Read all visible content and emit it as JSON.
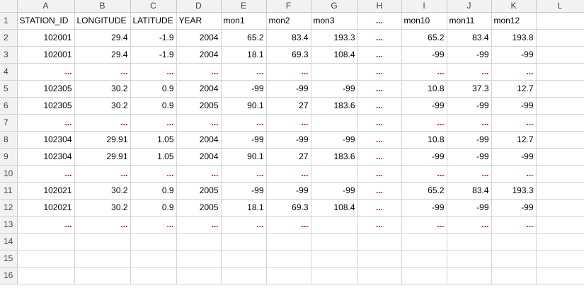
{
  "columns": [
    "A",
    "B",
    "C",
    "D",
    "E",
    "F",
    "G",
    "H",
    "I",
    "J",
    "K",
    "L"
  ],
  "rows": [
    {
      "n": "1",
      "cells": [
        {
          "v": "STATION_ID",
          "t": "txt"
        },
        {
          "v": "LONGITUDE",
          "t": "txt"
        },
        {
          "v": "LATITUDE",
          "t": "txt"
        },
        {
          "v": "YEAR",
          "t": "txt"
        },
        {
          "v": "mon1",
          "t": "txt"
        },
        {
          "v": "mon2",
          "t": "txt"
        },
        {
          "v": "mon3",
          "t": "txt"
        },
        {
          "v": "...",
          "t": "dot"
        },
        {
          "v": "mon10",
          "t": "txt"
        },
        {
          "v": "mon11",
          "t": "txt"
        },
        {
          "v": "mon12",
          "t": "txt"
        },
        {
          "v": "",
          "t": "num"
        }
      ]
    },
    {
      "n": "2",
      "cells": [
        {
          "v": "102001",
          "t": "num"
        },
        {
          "v": "29.4",
          "t": "num"
        },
        {
          "v": "-1.9",
          "t": "num"
        },
        {
          "v": "2004",
          "t": "num"
        },
        {
          "v": "65.2",
          "t": "num"
        },
        {
          "v": "83.4",
          "t": "num"
        },
        {
          "v": "193.3",
          "t": "num"
        },
        {
          "v": "...",
          "t": "dot"
        },
        {
          "v": "65.2",
          "t": "num"
        },
        {
          "v": "83.4",
          "t": "num"
        },
        {
          "v": "193.8",
          "t": "num"
        },
        {
          "v": "",
          "t": "num"
        }
      ]
    },
    {
      "n": "3",
      "cells": [
        {
          "v": "102001",
          "t": "num"
        },
        {
          "v": "29.4",
          "t": "num"
        },
        {
          "v": "-1.9",
          "t": "num"
        },
        {
          "v": "2004",
          "t": "num"
        },
        {
          "v": "18.1",
          "t": "num"
        },
        {
          "v": "69.3",
          "t": "num"
        },
        {
          "v": "108.4",
          "t": "num"
        },
        {
          "v": "...",
          "t": "dot"
        },
        {
          "v": "-99",
          "t": "num"
        },
        {
          "v": "-99",
          "t": "num"
        },
        {
          "v": "-99",
          "t": "num"
        },
        {
          "v": "",
          "t": "num"
        }
      ]
    },
    {
      "n": "4",
      "cells": [
        {
          "v": "...",
          "t": "dot"
        },
        {
          "v": "...",
          "t": "dot"
        },
        {
          "v": "...",
          "t": "dot"
        },
        {
          "v": "...",
          "t": "dot"
        },
        {
          "v": "...",
          "t": "dot"
        },
        {
          "v": "...",
          "t": "dot"
        },
        {
          "v": "",
          "t": "num"
        },
        {
          "v": "...",
          "t": "dot"
        },
        {
          "v": "...",
          "t": "dot"
        },
        {
          "v": "...",
          "t": "dot"
        },
        {
          "v": "...",
          "t": "dot"
        },
        {
          "v": "",
          "t": "num"
        }
      ]
    },
    {
      "n": "5",
      "cells": [
        {
          "v": "102305",
          "t": "num"
        },
        {
          "v": "30.2",
          "t": "num"
        },
        {
          "v": "0.9",
          "t": "num"
        },
        {
          "v": "2004",
          "t": "num"
        },
        {
          "v": "-99",
          "t": "num"
        },
        {
          "v": "-99",
          "t": "num"
        },
        {
          "v": "-99",
          "t": "num"
        },
        {
          "v": "...",
          "t": "dot"
        },
        {
          "v": "10.8",
          "t": "num"
        },
        {
          "v": "37.3",
          "t": "num"
        },
        {
          "v": "12.7",
          "t": "num"
        },
        {
          "v": "",
          "t": "num"
        }
      ]
    },
    {
      "n": "6",
      "cells": [
        {
          "v": "102305",
          "t": "num"
        },
        {
          "v": "30.2",
          "t": "num"
        },
        {
          "v": "0.9",
          "t": "num"
        },
        {
          "v": "2005",
          "t": "num"
        },
        {
          "v": "90.1",
          "t": "num"
        },
        {
          "v": "27",
          "t": "num"
        },
        {
          "v": "183.6",
          "t": "num"
        },
        {
          "v": "...",
          "t": "dot"
        },
        {
          "v": "-99",
          "t": "num"
        },
        {
          "v": "-99",
          "t": "num"
        },
        {
          "v": "-99",
          "t": "num"
        },
        {
          "v": "",
          "t": "num"
        }
      ]
    },
    {
      "n": "7",
      "cells": [
        {
          "v": "...",
          "t": "dot"
        },
        {
          "v": "...",
          "t": "dot"
        },
        {
          "v": "...",
          "t": "dot"
        },
        {
          "v": "...",
          "t": "dot"
        },
        {
          "v": "...",
          "t": "dot"
        },
        {
          "v": "...",
          "t": "dot"
        },
        {
          "v": "",
          "t": "num"
        },
        {
          "v": "...",
          "t": "dot"
        },
        {
          "v": "...",
          "t": "dot"
        },
        {
          "v": "...",
          "t": "dot"
        },
        {
          "v": "...",
          "t": "dot"
        },
        {
          "v": "",
          "t": "num"
        }
      ]
    },
    {
      "n": "8",
      "cells": [
        {
          "v": "102304",
          "t": "num"
        },
        {
          "v": "29.91",
          "t": "num"
        },
        {
          "v": "1.05",
          "t": "num"
        },
        {
          "v": "2004",
          "t": "num"
        },
        {
          "v": "-99",
          "t": "num"
        },
        {
          "v": "-99",
          "t": "num"
        },
        {
          "v": "-99",
          "t": "num"
        },
        {
          "v": "...",
          "t": "dot"
        },
        {
          "v": "10.8",
          "t": "num"
        },
        {
          "v": "-99",
          "t": "num"
        },
        {
          "v": "12.7",
          "t": "num"
        },
        {
          "v": "",
          "t": "num"
        }
      ]
    },
    {
      "n": "9",
      "cells": [
        {
          "v": "102304",
          "t": "num"
        },
        {
          "v": "29.91",
          "t": "num"
        },
        {
          "v": "1.05",
          "t": "num"
        },
        {
          "v": "2004",
          "t": "num"
        },
        {
          "v": "90.1",
          "t": "num"
        },
        {
          "v": "27",
          "t": "num"
        },
        {
          "v": "183.6",
          "t": "num"
        },
        {
          "v": "...",
          "t": "dot"
        },
        {
          "v": "-99",
          "t": "num"
        },
        {
          "v": "-99",
          "t": "num"
        },
        {
          "v": "-99",
          "t": "num"
        },
        {
          "v": "",
          "t": "num"
        }
      ]
    },
    {
      "n": "10",
      "cells": [
        {
          "v": "...",
          "t": "dot"
        },
        {
          "v": "...",
          "t": "dot"
        },
        {
          "v": "...",
          "t": "dot"
        },
        {
          "v": "...",
          "t": "dot"
        },
        {
          "v": "...",
          "t": "dot"
        },
        {
          "v": "...",
          "t": "dot"
        },
        {
          "v": "",
          "t": "num"
        },
        {
          "v": "...",
          "t": "dot"
        },
        {
          "v": "...",
          "t": "dot"
        },
        {
          "v": "...",
          "t": "dot"
        },
        {
          "v": "...",
          "t": "dot"
        },
        {
          "v": "",
          "t": "num"
        }
      ]
    },
    {
      "n": "11",
      "cells": [
        {
          "v": "102021",
          "t": "num"
        },
        {
          "v": "30.2",
          "t": "num"
        },
        {
          "v": "0.9",
          "t": "num"
        },
        {
          "v": "2005",
          "t": "num"
        },
        {
          "v": "-99",
          "t": "num"
        },
        {
          "v": "-99",
          "t": "num"
        },
        {
          "v": "-99",
          "t": "num"
        },
        {
          "v": "...",
          "t": "dot"
        },
        {
          "v": "65.2",
          "t": "num"
        },
        {
          "v": "83.4",
          "t": "num"
        },
        {
          "v": "193.3",
          "t": "num"
        },
        {
          "v": "",
          "t": "num"
        }
      ]
    },
    {
      "n": "12",
      "cells": [
        {
          "v": "102021",
          "t": "num"
        },
        {
          "v": "30.2",
          "t": "num"
        },
        {
          "v": "0.9",
          "t": "num"
        },
        {
          "v": "2005",
          "t": "num"
        },
        {
          "v": "18.1",
          "t": "num"
        },
        {
          "v": "69.3",
          "t": "num"
        },
        {
          "v": "108.4",
          "t": "num"
        },
        {
          "v": "...",
          "t": "dot"
        },
        {
          "v": "-99",
          "t": "num"
        },
        {
          "v": "-99",
          "t": "num"
        },
        {
          "v": "-99",
          "t": "num"
        },
        {
          "v": "",
          "t": "num"
        }
      ]
    },
    {
      "n": "13",
      "cells": [
        {
          "v": "...",
          "t": "dot"
        },
        {
          "v": "...",
          "t": "dot"
        },
        {
          "v": "...",
          "t": "dot"
        },
        {
          "v": "...",
          "t": "dot"
        },
        {
          "v": "...",
          "t": "dot"
        },
        {
          "v": "...",
          "t": "dot"
        },
        {
          "v": "",
          "t": "num"
        },
        {
          "v": "...",
          "t": "dot"
        },
        {
          "v": "...",
          "t": "dot"
        },
        {
          "v": "...",
          "t": "dot"
        },
        {
          "v": "...",
          "t": "dot"
        },
        {
          "v": "",
          "t": "num"
        }
      ]
    },
    {
      "n": "14",
      "cells": []
    },
    {
      "n": "15",
      "cells": []
    },
    {
      "n": "16",
      "cells": []
    }
  ],
  "colors": {
    "ellipsis": "#c00000",
    "grid": "#d4d4d4",
    "header_bg": "#f2f2f2"
  }
}
